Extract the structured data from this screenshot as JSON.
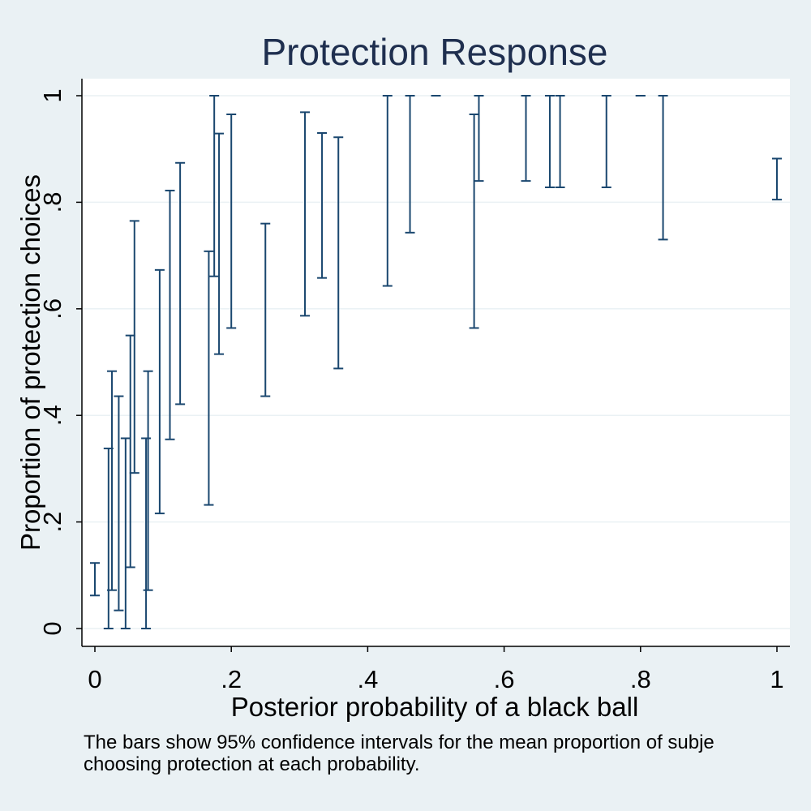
{
  "chart_data": {
    "type": "errorbar",
    "title": "Protection Response",
    "xlabel": "Posterior probability of a black ball",
    "ylabel": "Proportion of protection choices",
    "xlim": [
      0,
      1
    ],
    "ylim": [
      0,
      1
    ],
    "x_ticks": [
      {
        "value": 0,
        "label": "0"
      },
      {
        "value": 0.2,
        "label": ".2"
      },
      {
        "value": 0.4,
        "label": ".4"
      },
      {
        "value": 0.6,
        "label": ".6"
      },
      {
        "value": 0.8,
        "label": ".8"
      },
      {
        "value": 1,
        "label": "1"
      }
    ],
    "y_ticks": [
      {
        "value": 0,
        "label": "0"
      },
      {
        "value": 0.2,
        "label": ".2"
      },
      {
        "value": 0.4,
        "label": ".4"
      },
      {
        "value": 0.6,
        "label": ".6"
      },
      {
        "value": 0.8,
        "label": ".8"
      },
      {
        "value": 1,
        "label": "1"
      }
    ],
    "grid": true,
    "colors": {
      "bar": "#1a476f",
      "grid": "#eaf1f4",
      "background": "#eaf1f4",
      "plot_area": "#ffffff",
      "title": "#1f2f4f"
    },
    "intervals": [
      {
        "x": 0.0,
        "low": 0.062,
        "high": 0.123
      },
      {
        "x": 0.02,
        "low": 0.0,
        "high": 0.338
      },
      {
        "x": 0.025,
        "low": 0.072,
        "high": 0.483
      },
      {
        "x": 0.035,
        "low": 0.034,
        "high": 0.436
      },
      {
        "x": 0.045,
        "low": 0.0,
        "high": 0.357
      },
      {
        "x": 0.052,
        "low": 0.115,
        "high": 0.55
      },
      {
        "x": 0.058,
        "low": 0.292,
        "high": 0.765
      },
      {
        "x": 0.075,
        "low": 0.0,
        "high": 0.357
      },
      {
        "x": 0.078,
        "low": 0.072,
        "high": 0.483
      },
      {
        "x": 0.095,
        "low": 0.216,
        "high": 0.673
      },
      {
        "x": 0.11,
        "low": 0.355,
        "high": 0.822
      },
      {
        "x": 0.125,
        "low": 0.421,
        "high": 0.874
      },
      {
        "x": 0.167,
        "low": 0.232,
        "high": 0.708
      },
      {
        "x": 0.175,
        "low": 0.661,
        "high": 1.0
      },
      {
        "x": 0.182,
        "low": 0.515,
        "high": 0.929
      },
      {
        "x": 0.2,
        "low": 0.564,
        "high": 0.965
      },
      {
        "x": 0.25,
        "low": 0.436,
        "high": 0.76
      },
      {
        "x": 0.308,
        "low": 0.587,
        "high": 0.969
      },
      {
        "x": 0.333,
        "low": 0.658,
        "high": 0.93
      },
      {
        "x": 0.357,
        "low": 0.488,
        "high": 0.922
      },
      {
        "x": 0.429,
        "low": 0.643,
        "high": 1.0
      },
      {
        "x": 0.462,
        "low": 0.743,
        "high": 1.0
      },
      {
        "x": 0.5,
        "low": 1.0,
        "high": 1.0
      },
      {
        "x": 0.556,
        "low": 0.564,
        "high": 0.965
      },
      {
        "x": 0.563,
        "low": 0.84,
        "high": 1.0
      },
      {
        "x": 0.632,
        "low": 0.84,
        "high": 1.0
      },
      {
        "x": 0.667,
        "low": 0.828,
        "high": 1.0
      },
      {
        "x": 0.682,
        "low": 0.828,
        "high": 1.0
      },
      {
        "x": 0.75,
        "low": 0.828,
        "high": 1.0
      },
      {
        "x": 0.8,
        "low": 1.0,
        "high": 1.0
      },
      {
        "x": 0.833,
        "low": 0.73,
        "high": 1.0
      },
      {
        "x": 1.0,
        "low": 0.805,
        "high": 0.882
      }
    ]
  },
  "note": {
    "line1": "The bars show 95% confidence intervals for the mean proportion of subje",
    "line2": "choosing protection at each probability."
  }
}
